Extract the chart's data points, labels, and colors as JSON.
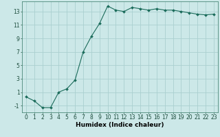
{
  "x": [
    0,
    1,
    2,
    3,
    4,
    5,
    6,
    7,
    8,
    9,
    10,
    11,
    12,
    13,
    14,
    15,
    16,
    17,
    18,
    19,
    20,
    21,
    22,
    23
  ],
  "y": [
    0.3,
    -0.3,
    -1.3,
    -1.3,
    1.0,
    1.5,
    2.8,
    7.0,
    9.3,
    11.2,
    13.8,
    13.2,
    13.0,
    13.6,
    13.4,
    13.2,
    13.4,
    13.2,
    13.2,
    13.0,
    12.8,
    12.6,
    12.5,
    12.6
  ],
  "line_color": "#1a6b5a",
  "marker": "D",
  "marker_size": 2.0,
  "bg_color": "#cce8e8",
  "grid_color": "#aad0d0",
  "xlabel": "Humidex (Indice chaleur)",
  "xlim": [
    -0.5,
    23.5
  ],
  "ylim": [
    -2,
    14.5
  ],
  "yticks": [
    -1,
    1,
    3,
    5,
    7,
    9,
    11,
    13
  ],
  "xticks": [
    0,
    1,
    2,
    3,
    4,
    5,
    6,
    7,
    8,
    9,
    10,
    11,
    12,
    13,
    14,
    15,
    16,
    17,
    18,
    19,
    20,
    21,
    22,
    23
  ],
  "label_fontsize": 6.5,
  "tick_fontsize": 5.5
}
